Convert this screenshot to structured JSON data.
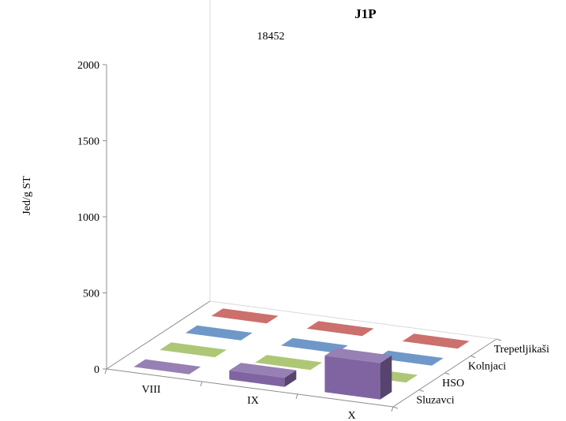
{
  "chart_data": {
    "type": "bar",
    "title": "J1P",
    "xlabel": "",
    "ylabel": "Jed/g ST",
    "categories": [
      "VIII",
      "IX",
      "X"
    ],
    "yticks": [
      0,
      500,
      1000,
      1500,
      2000
    ],
    "ylim": [
      0,
      2000
    ],
    "grid": false,
    "legend": "none",
    "series": [
      {
        "name": "Sluzavci",
        "values": [
          0,
          60,
          240
        ],
        "color": "#8064a2"
      },
      {
        "name": "HSO",
        "values": [
          0,
          0,
          0
        ],
        "color": "#9bbb59"
      },
      {
        "name": "Kolnjaci",
        "values": [
          0,
          0,
          0
        ],
        "color": "#4f81bd"
      },
      {
        "name": "Trepetljikaši",
        "values": [
          0,
          0,
          0
        ],
        "color": "#c0504d"
      }
    ],
    "annotations": [
      {
        "text": "18452"
      }
    ]
  }
}
